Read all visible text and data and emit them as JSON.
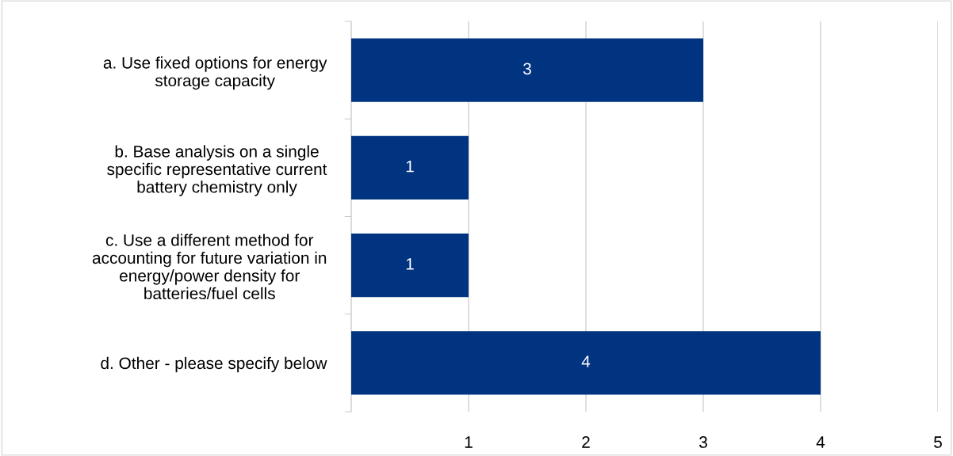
{
  "chart_data": {
    "type": "bar",
    "orientation": "horizontal",
    "categories": [
      "a. Use fixed options for energy\nstorage capacity",
      "b. Base analysis on a single\nspecific representative current\nbattery chemistry only",
      "c. Use a different method for\naccounting for future variation in\nenergy/power density for\nbatteries/fuel cells",
      "d. Other - please specify below"
    ],
    "values": [
      3,
      1,
      1,
      4
    ],
    "color": "#003380",
    "xlim": [
      0,
      5
    ],
    "xticks": [
      1,
      2,
      3,
      4,
      5
    ],
    "grid": "x",
    "data_labels": true,
    "legend": false
  }
}
